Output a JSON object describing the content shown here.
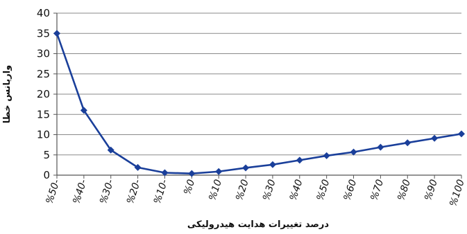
{
  "chart_data": {
    "type": "line",
    "title": "",
    "xlabel": "درصد تغییرات هدایت هیدرولیکی",
    "ylabel": "واریانس خطا",
    "categories": [
      "%50-",
      "%40-",
      "%30-",
      "%20-",
      "%10-",
      "%0",
      "%10",
      "%20",
      "%30",
      "%40",
      "%50",
      "%60",
      "%70",
      "%80",
      "%90",
      "%100"
    ],
    "series": [
      {
        "values": [
          35.0,
          16.0,
          6.2,
          1.9,
          0.6,
          0.4,
          0.9,
          1.8,
          2.6,
          3.7,
          4.8,
          5.7,
          6.9,
          8.0,
          9.1,
          10.2
        ]
      }
    ],
    "ylim": [
      0,
      40
    ],
    "yticks": [
      0,
      5,
      10,
      15,
      20,
      25,
      30,
      35,
      40
    ],
    "grid": true,
    "legend": "none",
    "colors": {
      "line": "#1a3f9a",
      "grid": "#8a8a8a",
      "axis": "#555555"
    }
  }
}
